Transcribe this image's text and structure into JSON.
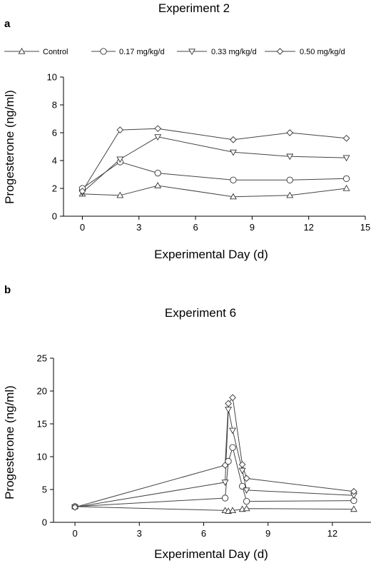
{
  "chart_data": [
    {
      "panel": "a",
      "type": "line",
      "title": "Experiment 2",
      "xlabel": "Experimental Day (d)",
      "ylabel": "Progesterone (ng/ml)",
      "xlim": [
        -1,
        15
      ],
      "ylim": [
        0,
        10
      ],
      "xticks": [
        0,
        3,
        6,
        9,
        12,
        15
      ],
      "yticks": [
        0,
        2,
        4,
        6,
        8,
        10
      ],
      "legend_position": "top",
      "series": [
        {
          "name": "Control",
          "marker": "triangle-up",
          "x": [
            0,
            2,
            4,
            8,
            11,
            14
          ],
          "y": [
            1.6,
            1.5,
            2.2,
            1.4,
            1.5,
            2.0
          ]
        },
        {
          "name": "0.17 mg/kg/d",
          "marker": "circle",
          "x": [
            0,
            2,
            4,
            8,
            11,
            14
          ],
          "y": [
            2.0,
            3.9,
            3.1,
            2.6,
            2.6,
            2.7
          ]
        },
        {
          "name": "0.33 mg/kg/d",
          "marker": "triangle-down",
          "x": [
            0,
            2,
            4,
            8,
            11,
            14
          ],
          "y": [
            1.7,
            4.1,
            5.7,
            4.6,
            4.3,
            4.2
          ]
        },
        {
          "name": "0.50 mg/kg/d",
          "marker": "diamond",
          "x": [
            0,
            2,
            4,
            8,
            11,
            14
          ],
          "y": [
            1.8,
            6.2,
            6.3,
            5.5,
            6.0,
            5.6
          ]
        }
      ]
    },
    {
      "panel": "b",
      "type": "line",
      "title": "Experiment 6",
      "xlabel": "Experimental Day (d)",
      "ylabel": "Progesterone (ng/ml)",
      "xlim": [
        -1,
        13.8
      ],
      "ylim": [
        0,
        25
      ],
      "xticks": [
        0,
        3,
        6,
        9,
        12
      ],
      "yticks": [
        0,
        5,
        10,
        15,
        20,
        25
      ],
      "series": [
        {
          "name": "Control",
          "marker": "triangle-up",
          "x": [
            0,
            7.0,
            7.15,
            7.35,
            7.8,
            8.0,
            13
          ],
          "y": [
            2.4,
            1.8,
            1.7,
            1.8,
            2.0,
            2.1,
            2.0
          ]
        },
        {
          "name": "0.17 mg/kg/d",
          "marker": "circle",
          "x": [
            0,
            7.0,
            7.15,
            7.35,
            7.8,
            8.0,
            13
          ],
          "y": [
            2.4,
            3.7,
            9.3,
            11.4,
            5.5,
            3.2,
            3.3
          ]
        },
        {
          "name": "0.33 mg/kg/d",
          "marker": "triangle-down",
          "x": [
            0,
            7.0,
            7.15,
            7.35,
            7.8,
            8.0,
            13
          ],
          "y": [
            2.3,
            6.1,
            17.2,
            14.0,
            7.9,
            4.9,
            4.1
          ]
        },
        {
          "name": "0.50 mg/kg/d",
          "marker": "diamond",
          "x": [
            0,
            7.0,
            7.15,
            7.35,
            7.8,
            8.0,
            13
          ],
          "y": [
            2.3,
            8.7,
            18.1,
            19.0,
            8.8,
            6.7,
            4.7
          ]
        }
      ]
    }
  ]
}
